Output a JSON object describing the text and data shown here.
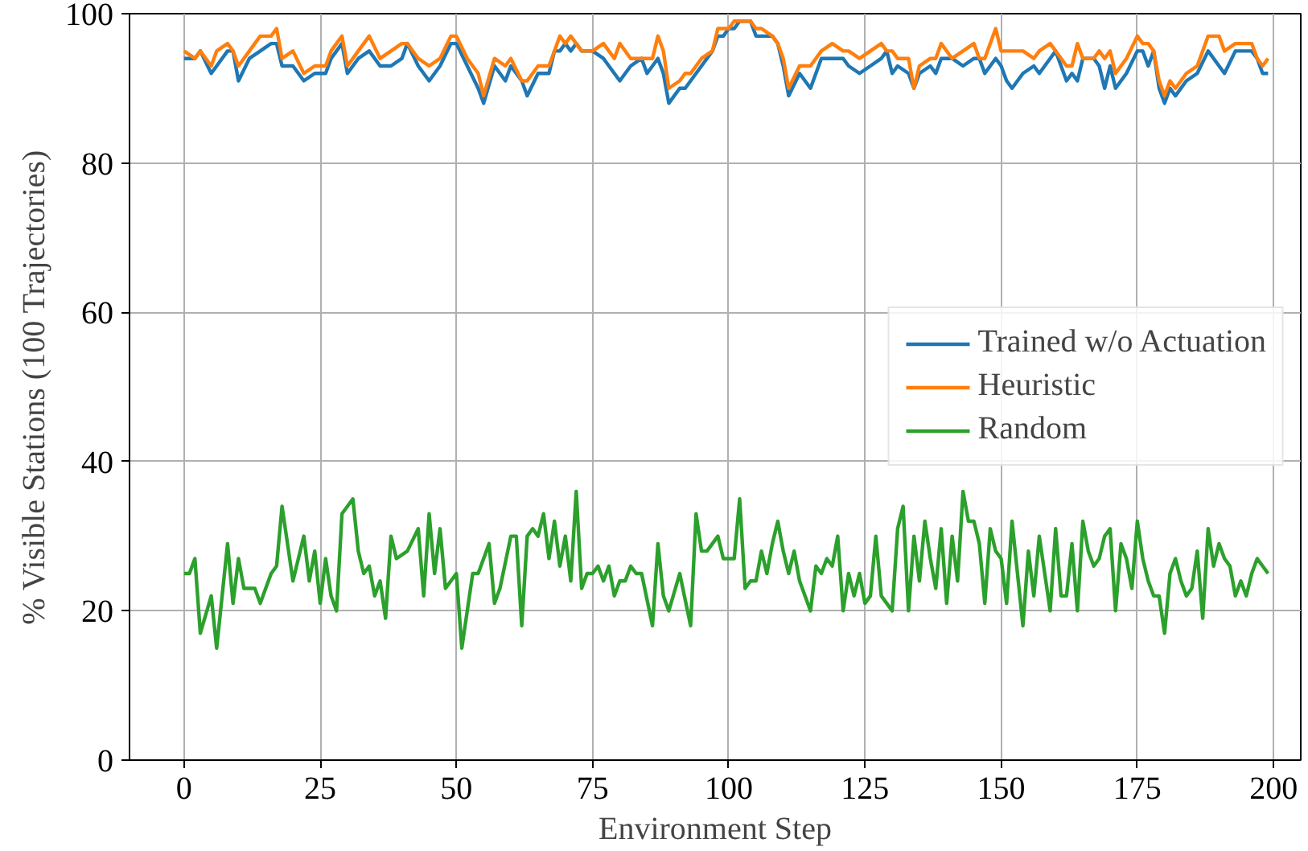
{
  "chart_data": {
    "type": "line",
    "xlabel": "Environment Step",
    "ylabel": "% Visible Stations (100 Trajectories)",
    "xlim": [
      -10,
      205
    ],
    "ylim": [
      0,
      100
    ],
    "xticks": [
      0,
      25,
      50,
      75,
      100,
      125,
      150,
      175,
      200
    ],
    "yticks": [
      0,
      20,
      40,
      60,
      80,
      100
    ],
    "grid": true,
    "legend": "right",
    "marker": "none",
    "line_style": "solid",
    "series": [
      {
        "name": "Trained w/o Actuation",
        "color": "#1f77b4",
        "x": [
          0,
          2,
          3,
          5,
          6,
          8,
          9,
          10,
          12,
          14,
          16,
          17,
          18,
          20,
          22,
          24,
          26,
          27,
          29,
          30,
          32,
          34,
          36,
          38,
          40,
          41,
          43,
          45,
          47,
          49,
          50,
          52,
          54,
          55,
          57,
          59,
          60,
          62,
          63,
          65,
          66,
          67,
          68,
          69,
          70,
          71,
          72,
          73,
          75,
          77,
          79,
          80,
          82,
          84,
          85,
          86,
          87,
          88,
          89,
          91,
          92,
          93,
          95,
          97,
          98,
          99,
          100,
          101,
          102,
          104,
          105,
          106,
          108,
          109,
          110,
          111,
          113,
          114,
          115,
          117,
          119,
          121,
          122,
          124,
          126,
          128,
          129,
          130,
          131,
          133,
          134,
          135,
          137,
          138,
          139,
          141,
          143,
          145,
          146,
          147,
          149,
          150,
          151,
          152,
          154,
          156,
          157,
          159,
          160,
          162,
          163,
          164,
          165,
          167,
          168,
          169,
          170,
          171,
          173,
          175,
          176,
          177,
          178,
          179,
          180,
          181,
          182,
          184,
          186,
          188,
          190,
          191,
          193,
          195,
          196,
          197,
          198,
          199
        ],
        "values": [
          94,
          94,
          95,
          92,
          93,
          95,
          95,
          91,
          94,
          95,
          96,
          96,
          93,
          93,
          91,
          92,
          92,
          94,
          96,
          92,
          94,
          95,
          93,
          93,
          94,
          96,
          93,
          91,
          93,
          96,
          96,
          93,
          90,
          88,
          93,
          91,
          93,
          91,
          89,
          92,
          92,
          92,
          95,
          95,
          96,
          95,
          96,
          95,
          95,
          94,
          92,
          91,
          93,
          94,
          92,
          93,
          94,
          92,
          88,
          90,
          90,
          91,
          93,
          95,
          97,
          97,
          98,
          98,
          99,
          99,
          97,
          97,
          97,
          96,
          93,
          89,
          92,
          91,
          90,
          94,
          94,
          94,
          93,
          92,
          93,
          94,
          95,
          92,
          93,
          92,
          90,
          92,
          93,
          92,
          94,
          94,
          93,
          94,
          94,
          92,
          94,
          93,
          91,
          90,
          92,
          93,
          92,
          94,
          95,
          91,
          92,
          91,
          94,
          94,
          93,
          90,
          93,
          90,
          92,
          95,
          95,
          93,
          95,
          90,
          88,
          90,
          89,
          91,
          92,
          95,
          93,
          92,
          95,
          95,
          95,
          94,
          92,
          92
        ]
      },
      {
        "name": "Heuristic",
        "color": "#ff7f0e",
        "x": [
          0,
          2,
          3,
          5,
          6,
          8,
          9,
          10,
          12,
          14,
          16,
          17,
          18,
          20,
          22,
          24,
          26,
          27,
          29,
          30,
          32,
          34,
          36,
          38,
          40,
          41,
          43,
          45,
          47,
          49,
          50,
          52,
          54,
          55,
          57,
          59,
          60,
          62,
          63,
          65,
          66,
          67,
          68,
          69,
          70,
          71,
          72,
          73,
          75,
          77,
          79,
          80,
          82,
          84,
          85,
          86,
          87,
          88,
          89,
          91,
          92,
          93,
          95,
          97,
          98,
          99,
          100,
          101,
          102,
          104,
          105,
          106,
          108,
          109,
          110,
          111,
          113,
          114,
          115,
          117,
          119,
          121,
          122,
          124,
          126,
          128,
          129,
          130,
          131,
          133,
          134,
          135,
          137,
          138,
          139,
          141,
          143,
          145,
          146,
          147,
          149,
          150,
          151,
          152,
          154,
          156,
          157,
          159,
          160,
          162,
          163,
          164,
          165,
          167,
          168,
          169,
          170,
          171,
          173,
          175,
          176,
          177,
          178,
          179,
          180,
          181,
          182,
          184,
          186,
          188,
          190,
          191,
          193,
          195,
          196,
          197,
          198,
          199
        ],
        "values": [
          95,
          94,
          95,
          93,
          95,
          96,
          95,
          93,
          95,
          97,
          97,
          98,
          94,
          95,
          92,
          93,
          93,
          95,
          97,
          93,
          95,
          97,
          94,
          95,
          96,
          96,
          94,
          93,
          94,
          97,
          97,
          94,
          92,
          89,
          94,
          93,
          94,
          91,
          91,
          93,
          93,
          93,
          95,
          97,
          96,
          97,
          96,
          95,
          95,
          96,
          94,
          96,
          94,
          94,
          94,
          94,
          97,
          95,
          90,
          91,
          92,
          92,
          94,
          95,
          98,
          98,
          98,
          99,
          99,
          99,
          98,
          98,
          97,
          96,
          94,
          90,
          93,
          93,
          93,
          95,
          96,
          95,
          95,
          94,
          95,
          96,
          95,
          95,
          94,
          94,
          90,
          93,
          94,
          94,
          96,
          94,
          95,
          96,
          94,
          94,
          98,
          95,
          95,
          95,
          95,
          94,
          95,
          96,
          95,
          93,
          93,
          96,
          94,
          94,
          95,
          94,
          95,
          92,
          94,
          97,
          96,
          96,
          95,
          91,
          89,
          91,
          90,
          92,
          93,
          97,
          97,
          95,
          96,
          96,
          96,
          94,
          93,
          94
        ]
      },
      {
        "name": "Random",
        "color": "#2ca02c",
        "x": [
          0,
          1,
          2,
          3,
          5,
          6,
          8,
          9,
          10,
          11,
          13,
          14,
          16,
          17,
          18,
          20,
          22,
          23,
          24,
          25,
          26,
          27,
          28,
          29,
          31,
          32,
          33,
          34,
          35,
          36,
          37,
          38,
          39,
          41,
          43,
          44,
          45,
          46,
          47,
          48,
          50,
          51,
          53,
          54,
          56,
          57,
          58,
          60,
          61,
          62,
          63,
          64,
          65,
          66,
          67,
          68,
          69,
          70,
          71,
          72,
          73,
          74,
          75,
          76,
          77,
          78,
          79,
          80,
          81,
          82,
          83,
          84,
          86,
          87,
          88,
          89,
          91,
          93,
          94,
          95,
          96,
          97,
          98,
          99,
          100,
          101,
          102,
          103,
          104,
          105,
          106,
          107,
          108,
          109,
          110,
          111,
          112,
          113,
          114,
          115,
          116,
          117,
          118,
          119,
          120,
          121,
          122,
          123,
          124,
          125,
          126,
          127,
          128,
          129,
          130,
          131,
          132,
          133,
          134,
          135,
          136,
          137,
          138,
          139,
          140,
          141,
          142,
          143,
          144,
          145,
          146,
          147,
          148,
          149,
          150,
          151,
          152,
          153,
          154,
          155,
          156,
          157,
          158,
          159,
          160,
          161,
          162,
          163,
          164,
          165,
          166,
          167,
          168,
          169,
          170,
          171,
          172,
          173,
          174,
          175,
          176,
          177,
          178,
          179,
          180,
          181,
          182,
          183,
          184,
          185,
          186,
          187,
          188,
          189,
          190,
          191,
          192,
          193,
          194,
          195,
          196,
          197,
          198,
          199
        ],
        "values": [
          25,
          25,
          27,
          17,
          22,
          15,
          29,
          21,
          27,
          23,
          23,
          21,
          25,
          26,
          34,
          24,
          30,
          24,
          28,
          21,
          27,
          22,
          20,
          33,
          35,
          28,
          25,
          26,
          22,
          24,
          19,
          30,
          27,
          28,
          31,
          22,
          33,
          25,
          31,
          23,
          25,
          15,
          25,
          25,
          29,
          21,
          23,
          30,
          30,
          18,
          30,
          31,
          30,
          33,
          27,
          32,
          26,
          30,
          24,
          36,
          23,
          25,
          25,
          26,
          24,
          26,
          22,
          24,
          24,
          26,
          25,
          25,
          18,
          29,
          22,
          20,
          25,
          18,
          33,
          28,
          28,
          29,
          30,
          27,
          27,
          27,
          35,
          23,
          24,
          24,
          28,
          25,
          29,
          32,
          28,
          25,
          28,
          24,
          22,
          20,
          26,
          25,
          27,
          26,
          30,
          20,
          25,
          22,
          25,
          21,
          22,
          30,
          22,
          21,
          20,
          31,
          34,
          20,
          30,
          24,
          32,
          27,
          23,
          31,
          21,
          30,
          24,
          36,
          32,
          32,
          29,
          21,
          31,
          28,
          27,
          21,
          32,
          25,
          18,
          28,
          22,
          30,
          25,
          20,
          31,
          22,
          22,
          29,
          20,
          32,
          28,
          26,
          27,
          30,
          31,
          20,
          29,
          27,
          23,
          32,
          27,
          24,
          22,
          22,
          17,
          25,
          27,
          24,
          22,
          23,
          28,
          19,
          31,
          26,
          29,
          27,
          26,
          22,
          24,
          22,
          25,
          27,
          26,
          25
        ]
      }
    ]
  }
}
